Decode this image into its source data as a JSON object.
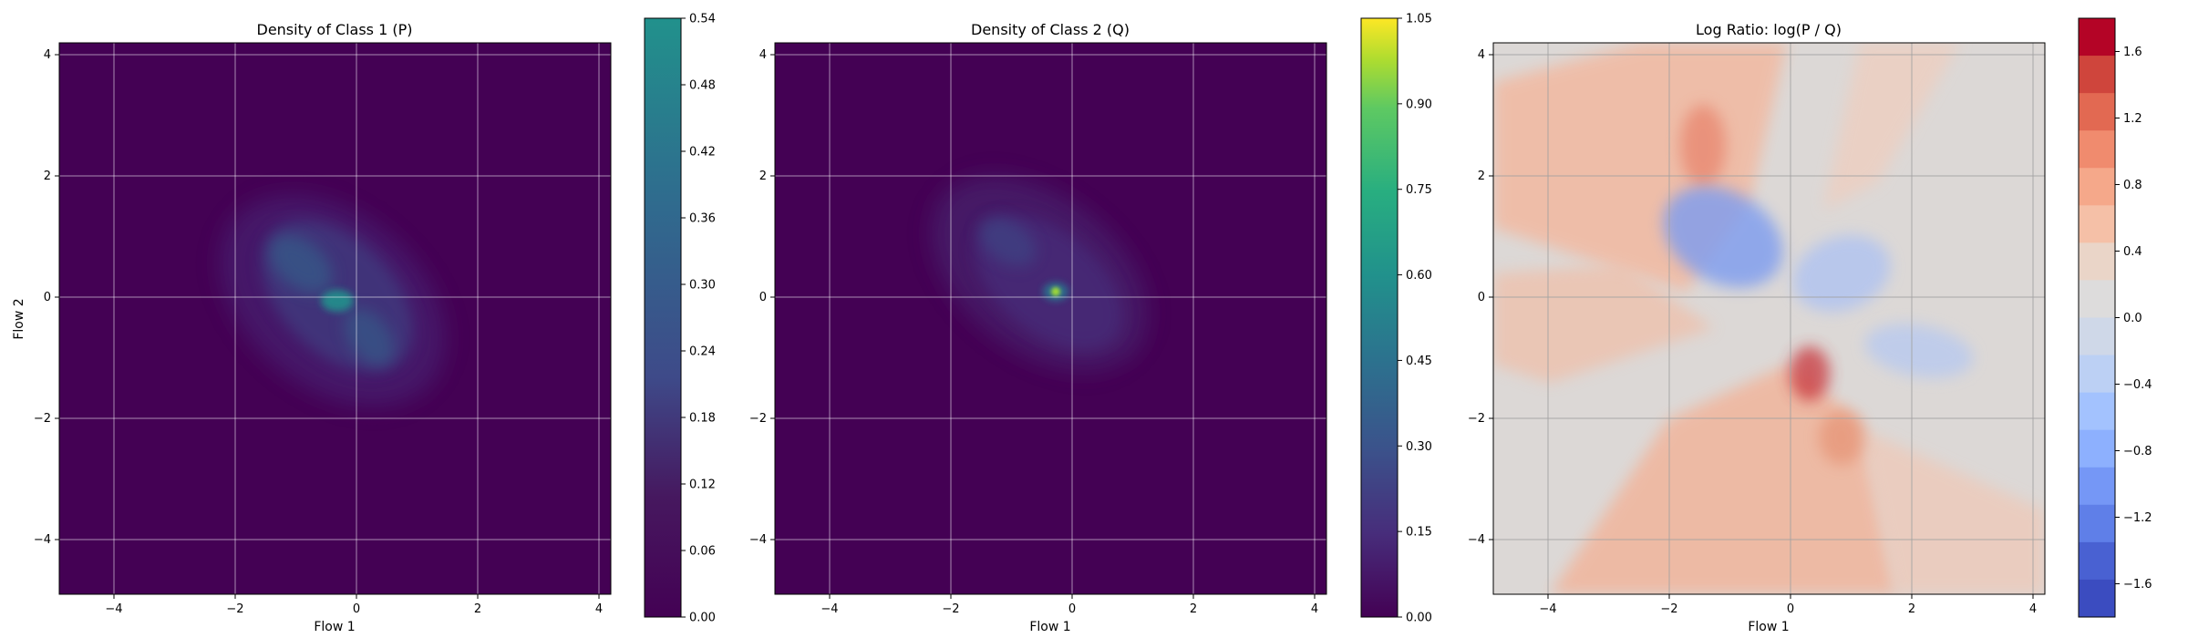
{
  "chart_data": [
    {
      "type": "heatmap",
      "title": "Density of Class 1 (P)",
      "xlabel": "Flow 1",
      "ylabel": "Flow 2",
      "xlim": [
        -4.9,
        4.2
      ],
      "ylim": [
        -4.9,
        4.2
      ],
      "xticks": [
        "−4",
        "−2",
        "0",
        "2",
        "4"
      ],
      "yticks": [
        "−4",
        "−2",
        "0",
        "2",
        "4"
      ],
      "grid": true,
      "colormap": "viridis",
      "colorbar": {
        "min": 0.0,
        "max": 0.54,
        "ticks": [
          "0.00",
          "0.06",
          "0.12",
          "0.18",
          "0.24",
          "0.30",
          "0.36",
          "0.42",
          "0.48",
          "0.54"
        ]
      },
      "density_peak": {
        "x": -0.3,
        "y": -0.1,
        "value": 0.54
      }
    },
    {
      "type": "heatmap",
      "title": "Density of Class 2 (Q)",
      "xlabel": "Flow 1",
      "ylabel": "",
      "xlim": [
        -4.9,
        4.2
      ],
      "ylim": [
        -4.9,
        4.2
      ],
      "xticks": [
        "−4",
        "−2",
        "0",
        "2",
        "4"
      ],
      "yticks": [
        "−4",
        "−2",
        "0",
        "2",
        "4"
      ],
      "grid": true,
      "colormap": "viridis",
      "colorbar": {
        "min": 0.0,
        "max": 1.05,
        "ticks": [
          "0.00",
          "0.15",
          "0.30",
          "0.45",
          "0.60",
          "0.75",
          "0.90",
          "1.05"
        ]
      },
      "density_peak": {
        "x": -0.25,
        "y": 0.05,
        "value": 1.05
      }
    },
    {
      "type": "heatmap",
      "title": "Log Ratio: log(P / Q)",
      "xlabel": "Flow 1",
      "ylabel": "",
      "xlim": [
        -4.9,
        4.2
      ],
      "ylim": [
        -4.9,
        4.2
      ],
      "xticks": [
        "−4",
        "−2",
        "0",
        "2",
        "4"
      ],
      "yticks": [
        "−4",
        "−2",
        "0",
        "2",
        "4"
      ],
      "grid": true,
      "colormap": "coolwarm",
      "colorbar": {
        "min": -1.8,
        "max": 1.8,
        "ticks": [
          "1.6",
          "1.2",
          "0.8",
          "0.4",
          "0.0",
          "−0.4",
          "−0.8",
          "−1.2",
          "−1.6"
        ]
      }
    }
  ]
}
